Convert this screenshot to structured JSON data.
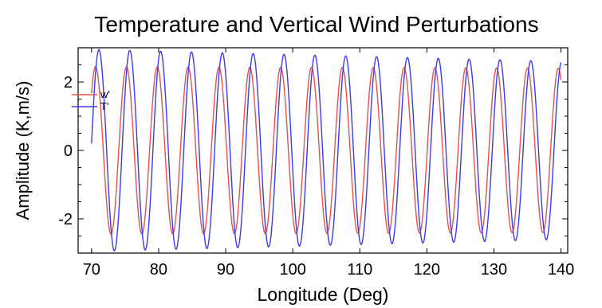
{
  "chart_data": {
    "type": "line",
    "title": "Temperature and Vertical Wind Perturbations",
    "xlabel": "Longitude (Deg)",
    "ylabel": "Amplitude (K,m/s)",
    "xlim": [
      68,
      141
    ],
    "ylim": [
      -3,
      3
    ],
    "x_ticks": [
      70,
      80,
      90,
      100,
      110,
      120,
      130,
      140
    ],
    "y_ticks": [
      -2,
      0,
      2
    ],
    "grid": false,
    "legend_placement": "top-left",
    "series": [
      {
        "name": "w'",
        "color": "#e8524a",
        "x_start": 70,
        "x_end": 140,
        "period_deg": 4.6,
        "phase_deg": 70.6,
        "amplitude_start": 2.45,
        "amplitude_end": 2.4
      },
      {
        "name": "T'",
        "color": "#3b3bf0",
        "x_start": 70,
        "x_end": 140,
        "period_deg": 4.6,
        "phase_deg": 75.7,
        "amplitude_start": 2.95,
        "amplitude_end": 2.6
      }
    ]
  }
}
